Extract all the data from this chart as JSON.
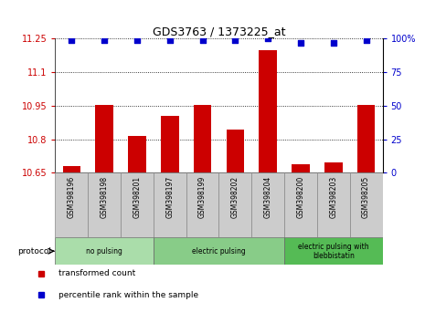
{
  "title": "GDS3763 / 1373225_at",
  "samples": [
    "GSM398196",
    "GSM398198",
    "GSM398201",
    "GSM398197",
    "GSM398199",
    "GSM398202",
    "GSM398204",
    "GSM398200",
    "GSM398203",
    "GSM398205"
  ],
  "transformed_counts": [
    10.68,
    10.955,
    10.815,
    10.905,
    10.955,
    10.845,
    11.2,
    10.69,
    10.695,
    10.955
  ],
  "percentile_ranks": [
    99,
    99,
    99,
    99,
    99,
    99,
    100,
    97,
    97,
    99
  ],
  "ylim_left": [
    10.65,
    11.25
  ],
  "ylim_right": [
    0,
    100
  ],
  "yticks_left": [
    10.65,
    10.8,
    10.95,
    11.1,
    11.25
  ],
  "ytick_labels_left": [
    "10.65",
    "10.8",
    "10.95",
    "11.1",
    "11.25"
  ],
  "ytick_labels_right": [
    "0",
    "25",
    "50",
    "75",
    "100%"
  ],
  "yticks_right": [
    0,
    25,
    50,
    75,
    100
  ],
  "bar_color": "#cc0000",
  "dot_color": "#0000cc",
  "group_defs": [
    {
      "start": 0,
      "end": 2,
      "label": "no pulsing",
      "color": "#aaddaa"
    },
    {
      "start": 3,
      "end": 6,
      "label": "electric pulsing",
      "color": "#88cc88"
    },
    {
      "start": 7,
      "end": 9,
      "label": "electric pulsing with\nblebbistatin",
      "color": "#55bb55"
    }
  ],
  "protocol_label": "protocol",
  "legend_entries": [
    {
      "label": "transformed count",
      "color": "#cc0000"
    },
    {
      "label": "percentile rank within the sample",
      "color": "#0000cc"
    }
  ],
  "tick_color_left": "#cc0000",
  "tick_color_right": "#0000cc",
  "cell_color": "#cccccc"
}
